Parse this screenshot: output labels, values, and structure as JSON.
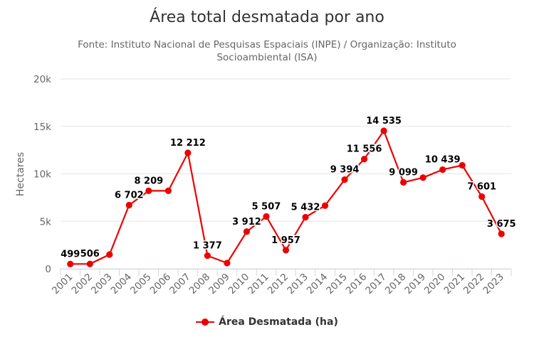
{
  "chart_data": {
    "type": "line",
    "title": "Área total desmatada por ano",
    "subtitle": "Fonte: Instituto Nacional de Pesquisas Espaciais (INPE) / Organização: Instituto Socioambiental (ISA)",
    "ylabel": "Hectares",
    "xlabel": "",
    "ylim": [
      0,
      20000
    ],
    "y_ticks": [
      0,
      5000,
      10000,
      15000,
      20000
    ],
    "y_tick_labels": [
      "0",
      "5k",
      "10k",
      "15k",
      "20k"
    ],
    "categories": [
      "2001",
      "2002",
      "2003",
      "2004",
      "2005",
      "2006",
      "2007",
      "2008",
      "2009",
      "2010",
      "2011",
      "2012",
      "2013",
      "2014",
      "2015",
      "2016",
      "2017",
      "2018",
      "2019",
      "2020",
      "2021",
      "2022",
      "2023"
    ],
    "series": [
      {
        "name": "Área Desmatada (ha)",
        "color": "#ee0000",
        "values": [
          499,
          506,
          1500,
          6702,
          8209,
          8209,
          12212,
          1377,
          600,
          3912,
          5507,
          1957,
          5432,
          6650,
          9394,
          11556,
          14535,
          9099,
          9600,
          10439,
          10900,
          7601,
          3675
        ],
        "data_labels": [
          "499",
          "506",
          "",
          "6 702",
          "8 209",
          "",
          "12 212",
          "1 377",
          "",
          "3 912",
          "5 507",
          "1 957",
          "5 432",
          "",
          "9 394",
          "11 556",
          "14 535",
          "9 099",
          "",
          "10 439",
          "",
          "7 601",
          "3 675"
        ]
      }
    ],
    "grid": true,
    "legend_position": "bottom-center"
  }
}
